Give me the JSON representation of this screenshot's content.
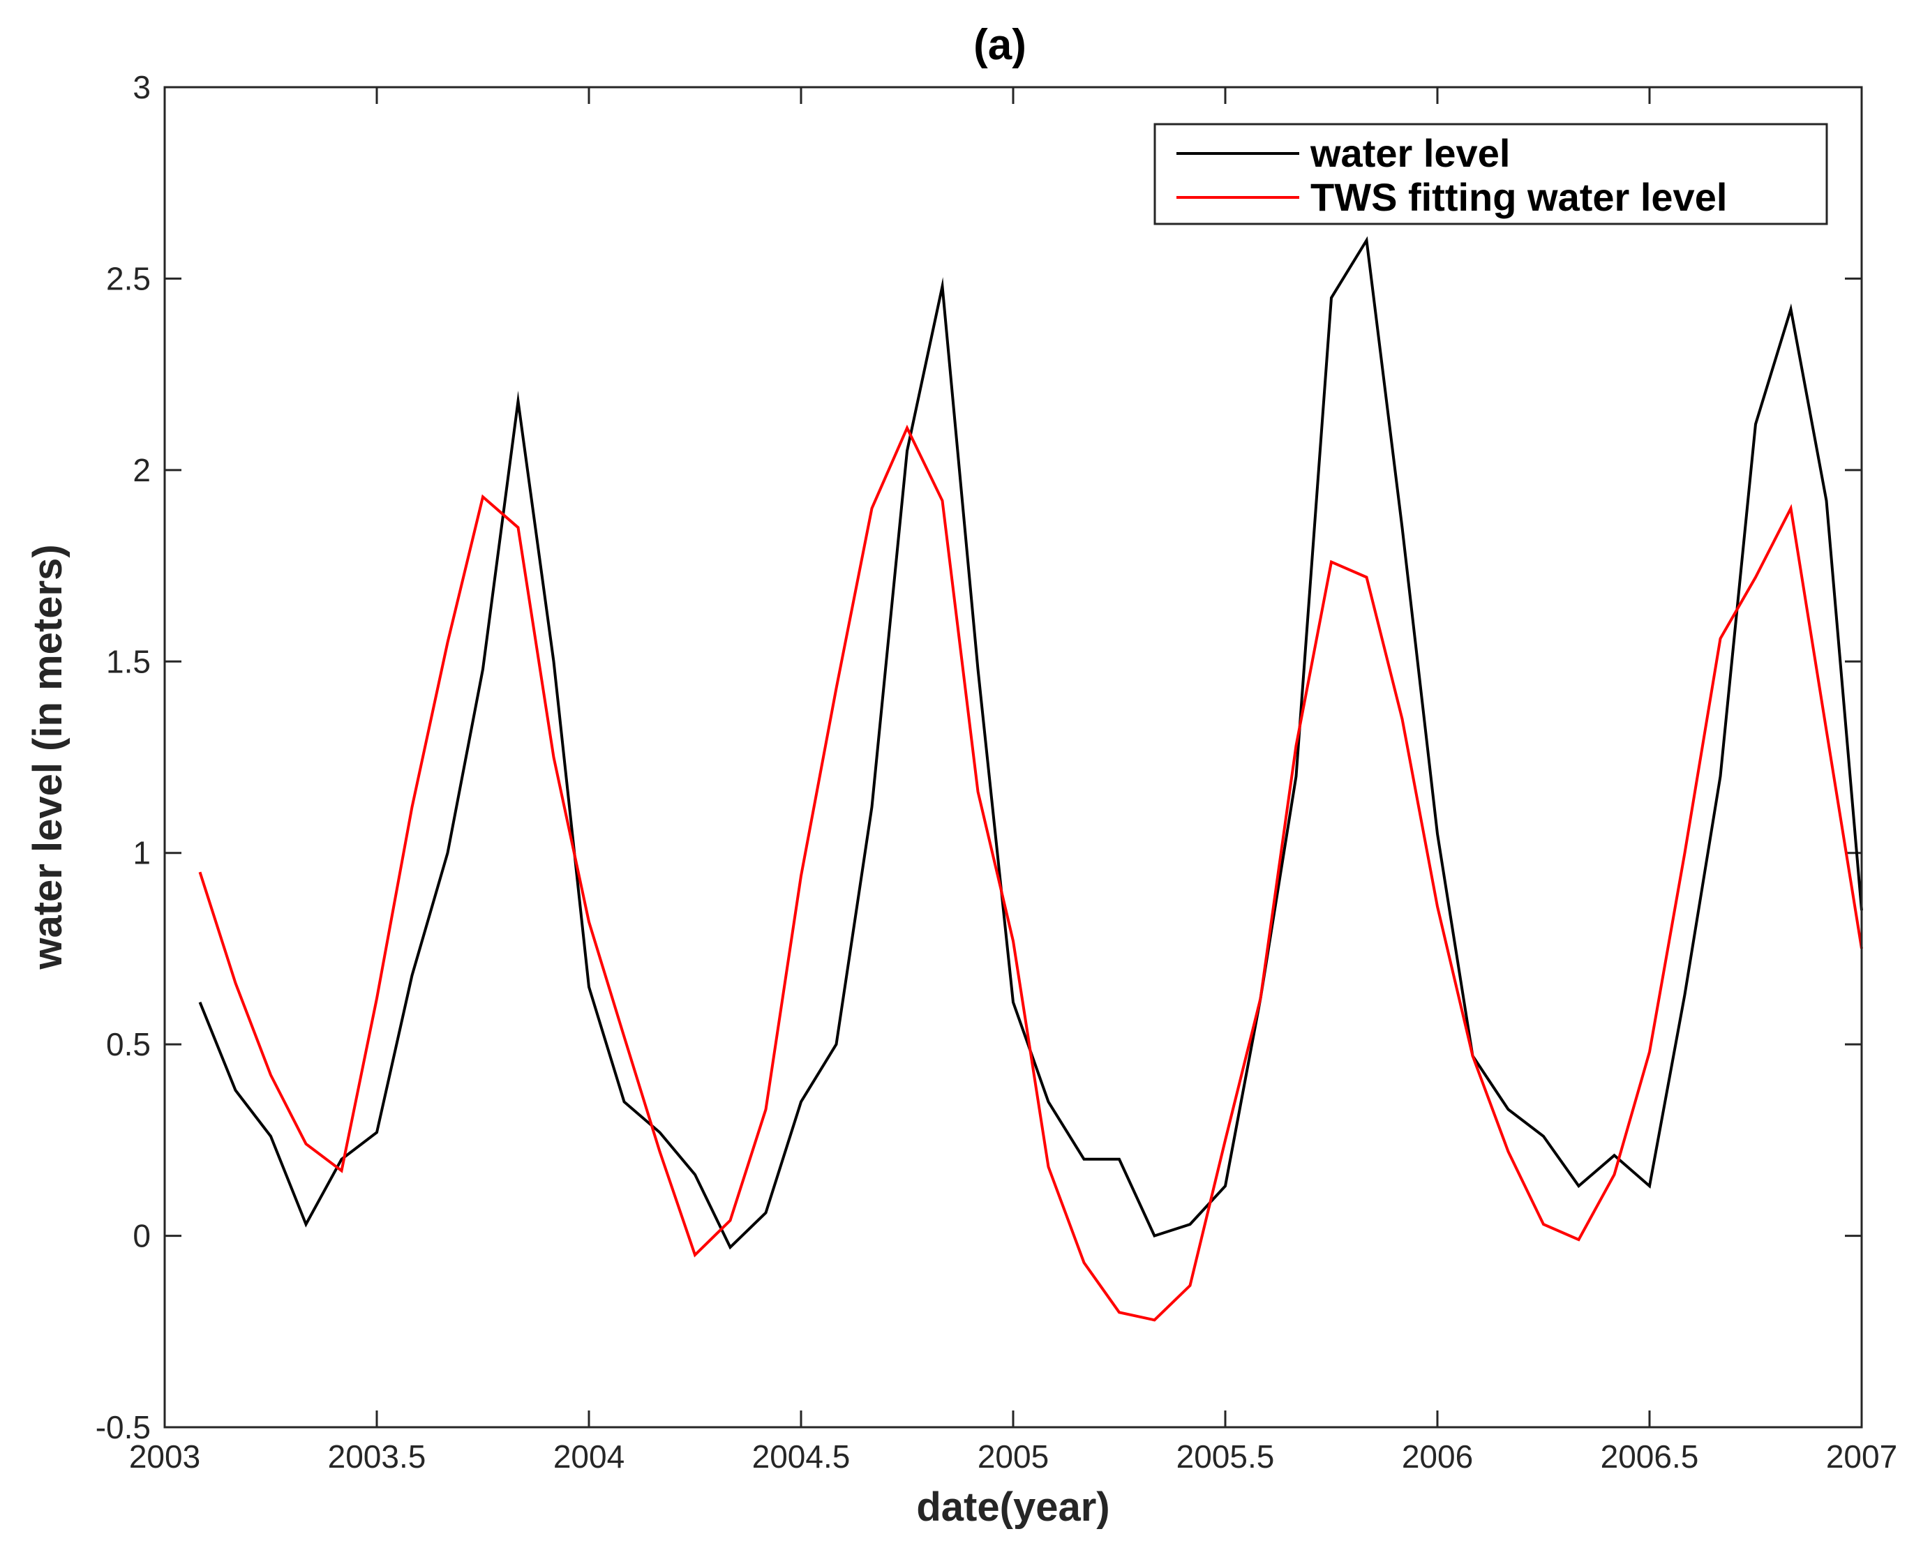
{
  "chart_data": {
    "type": "line",
    "title": "(a)",
    "xlabel": "date(year)",
    "ylabel": "water level (in meters)",
    "xlim": [
      2003,
      2007
    ],
    "ylim": [
      -0.5,
      3
    ],
    "xticks": [
      2003,
      2003.5,
      2004,
      2004.5,
      2005,
      2005.5,
      2006,
      2006.5,
      2007
    ],
    "xtick_labels": [
      "2003",
      "2003.5",
      "2004",
      "2004.5",
      "2005",
      "2005.5",
      "2006",
      "2006.5",
      "2007"
    ],
    "yticks": [
      -0.5,
      0,
      0.5,
      1,
      1.5,
      2,
      2.5,
      3
    ],
    "ytick_labels": [
      "-0.5",
      "0",
      "0.5",
      "1",
      "1.5",
      "2",
      "2.5",
      "3"
    ],
    "legend_position": "top-right",
    "series": [
      {
        "name": "water level",
        "color": "#000000",
        "x": [
          2003.083,
          2003.167,
          2003.25,
          2003.333,
          2003.417,
          2003.5,
          2003.583,
          2003.667,
          2003.75,
          2003.833,
          2003.917,
          2004.0,
          2004.083,
          2004.167,
          2004.25,
          2004.333,
          2004.417,
          2004.5,
          2004.583,
          2004.667,
          2004.75,
          2004.833,
          2004.917,
          2005.0,
          2005.083,
          2005.167,
          2005.25,
          2005.333,
          2005.417,
          2005.5,
          2005.583,
          2005.667,
          2005.75,
          2005.833,
          2005.917,
          2006.0,
          2006.083,
          2006.167,
          2006.25,
          2006.333,
          2006.417,
          2006.5,
          2006.583,
          2006.667,
          2006.75,
          2006.833,
          2006.917,
          2007.0
        ],
        "values": [
          0.61,
          0.38,
          0.26,
          0.03,
          0.2,
          0.27,
          0.68,
          1.0,
          1.48,
          2.18,
          1.5,
          0.65,
          0.35,
          0.27,
          0.16,
          -0.03,
          0.06,
          0.35,
          0.5,
          1.12,
          2.05,
          2.48,
          1.48,
          0.61,
          0.35,
          0.2,
          0.2,
          0.0,
          0.03,
          0.13,
          0.62,
          1.2,
          2.45,
          2.6,
          1.85,
          1.05,
          0.47,
          0.33,
          0.26,
          0.13,
          0.21,
          0.13,
          0.63,
          1.2,
          2.12,
          2.42,
          1.92,
          0.85
        ]
      },
      {
        "name": "TWS fitting water level",
        "color": "#ff0000",
        "x": [
          2003.083,
          2003.167,
          2003.25,
          2003.333,
          2003.417,
          2003.5,
          2003.583,
          2003.667,
          2003.75,
          2003.833,
          2003.917,
          2004.0,
          2004.083,
          2004.167,
          2004.25,
          2004.333,
          2004.417,
          2004.5,
          2004.583,
          2004.667,
          2004.75,
          2004.833,
          2004.917,
          2005.0,
          2005.083,
          2005.167,
          2005.25,
          2005.333,
          2005.417,
          2005.5,
          2005.583,
          2005.667,
          2005.75,
          2005.833,
          2005.917,
          2006.0,
          2006.083,
          2006.167,
          2006.25,
          2006.333,
          2006.417,
          2006.5,
          2006.583,
          2006.667,
          2006.75,
          2006.833,
          2006.917,
          2007.0
        ],
        "values": [
          0.95,
          0.66,
          0.42,
          0.24,
          0.17,
          0.62,
          1.12,
          1.55,
          1.93,
          1.85,
          1.25,
          0.82,
          0.52,
          0.22,
          -0.05,
          0.04,
          0.33,
          0.94,
          1.43,
          1.9,
          2.11,
          1.92,
          1.16,
          0.77,
          0.18,
          -0.07,
          -0.2,
          -0.22,
          -0.13,
          0.25,
          0.62,
          1.28,
          1.76,
          1.72,
          1.35,
          0.86,
          0.47,
          0.22,
          0.03,
          -0.01,
          0.16,
          0.48,
          1.0,
          1.56,
          1.72,
          1.9,
          1.32,
          0.75
        ]
      }
    ]
  }
}
